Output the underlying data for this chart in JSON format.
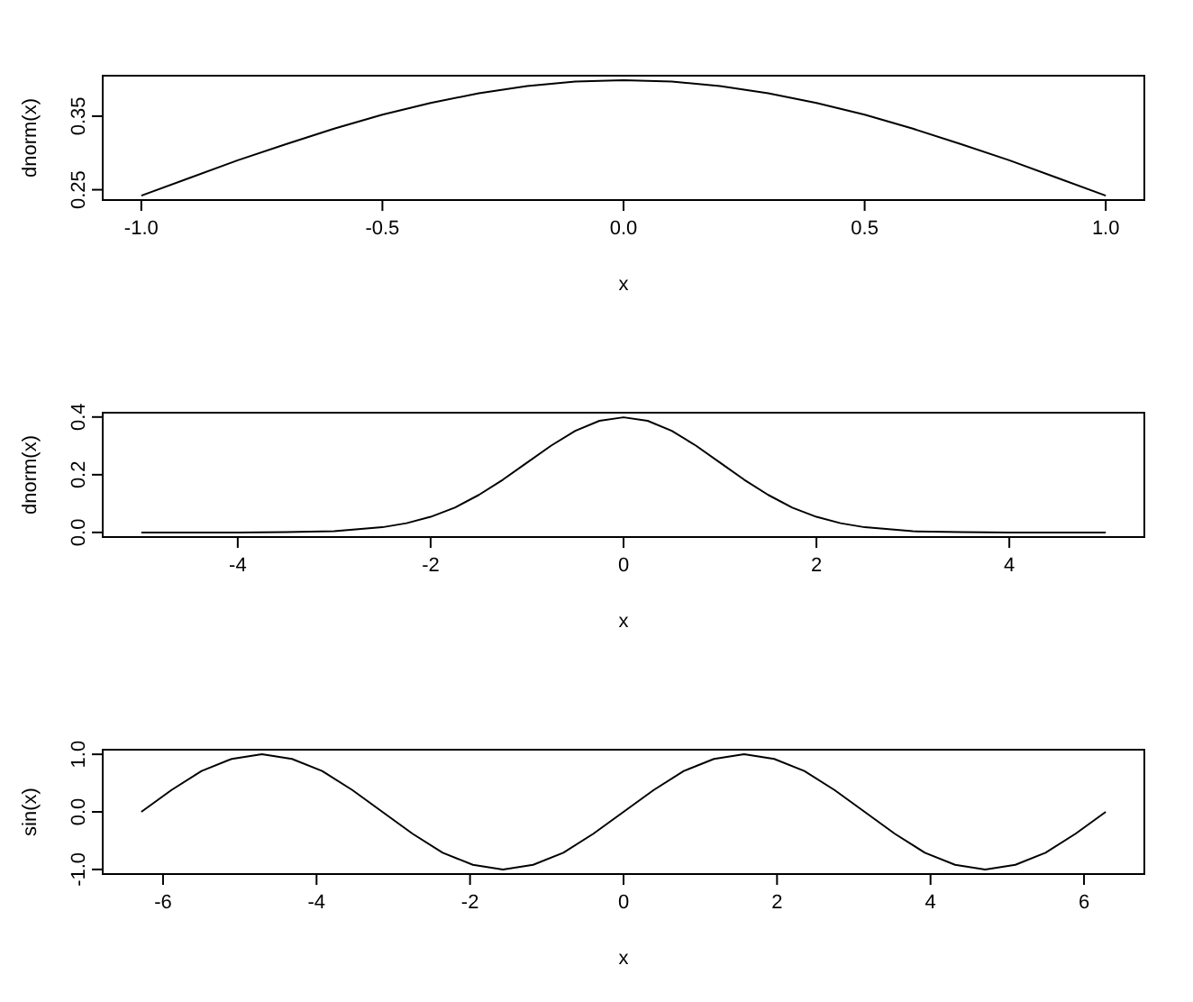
{
  "chart_data": [
    {
      "type": "line",
      "xlabel": "x",
      "ylabel": "dnorm(x)",
      "x": [
        -1,
        -0.9,
        -0.8,
        -0.7,
        -0.6,
        -0.5,
        -0.4,
        -0.3,
        -0.2,
        -0.1,
        0,
        0.1,
        0.2,
        0.3,
        0.4,
        0.5,
        0.6,
        0.7,
        0.8,
        0.9,
        1
      ],
      "series": [
        {
          "color": "#000000",
          "values": [
            0.242,
            0.266,
            0.29,
            0.312,
            0.333,
            0.352,
            0.368,
            0.381,
            0.391,
            0.397,
            0.399,
            0.397,
            0.391,
            0.381,
            0.368,
            0.352,
            0.333,
            0.312,
            0.29,
            0.266,
            0.242
          ]
        }
      ],
      "xlim": [
        -1.08,
        1.08
      ],
      "ylim": [
        0.236,
        0.405
      ],
      "xticks": [
        {
          "value": -1,
          "label": "-1.0"
        },
        -0.5,
        {
          "value": 0,
          "label": "0.0"
        },
        0.5,
        {
          "value": 1,
          "label": "1.0"
        }
      ],
      "yticks": [
        0.25,
        0.35
      ],
      "grid": false,
      "marker": "none",
      "line_style": "solid"
    },
    {
      "type": "line",
      "xlabel": "x",
      "ylabel": "dnorm(x)",
      "x": [
        -5,
        -4.5,
        -4,
        -3.5,
        -3,
        -2.5,
        -2.25,
        -2,
        -1.75,
        -1.5,
        -1.25,
        -1,
        -0.75,
        -0.5,
        -0.25,
        0,
        0.25,
        0.5,
        0.75,
        1,
        1.25,
        1.5,
        1.75,
        2,
        2.25,
        2.5,
        3,
        3.5,
        4,
        4.5,
        5
      ],
      "series": [
        {
          "color": "#000000",
          "values": [
            0,
            0,
            0,
            0.001,
            0.004,
            0.018,
            0.032,
            0.054,
            0.086,
            0.13,
            0.183,
            0.242,
            0.301,
            0.352,
            0.387,
            0.399,
            0.387,
            0.352,
            0.301,
            0.242,
            0.183,
            0.13,
            0.086,
            0.054,
            0.032,
            0.018,
            0.004,
            0.001,
            0,
            0,
            0
          ]
        }
      ],
      "xlim": [
        -5.4,
        5.4
      ],
      "ylim": [
        -0.016,
        0.415
      ],
      "xticks": [
        -4,
        -2,
        0,
        2,
        4
      ],
      "yticks": [
        {
          "value": 0,
          "label": "0.0"
        },
        0.2,
        0.4
      ],
      "grid": false,
      "marker": "none",
      "line_style": "solid"
    },
    {
      "type": "line",
      "xlabel": "x",
      "ylabel": "sin(x)",
      "x": [
        -6.283,
        -5.89,
        -5.498,
        -5.105,
        -4.712,
        -4.32,
        -3.927,
        -3.534,
        -3.142,
        -2.749,
        -2.356,
        -1.963,
        -1.571,
        -1.178,
        -0.785,
        -0.393,
        0,
        0.393,
        0.785,
        1.178,
        1.571,
        1.963,
        2.356,
        2.749,
        3.142,
        3.534,
        3.927,
        4.32,
        4.712,
        5.105,
        5.498,
        5.89,
        6.283
      ],
      "series": [
        {
          "color": "#000000",
          "values": [
            0,
            0.38,
            0.71,
            0.92,
            1,
            0.92,
            0.71,
            0.38,
            0,
            -0.38,
            -0.71,
            -0.92,
            -1,
            -0.92,
            -0.71,
            -0.38,
            0,
            0.38,
            0.71,
            0.92,
            1,
            0.92,
            0.71,
            0.38,
            0,
            -0.38,
            -0.71,
            -0.92,
            -1,
            -0.92,
            -0.71,
            -0.38,
            0
          ]
        }
      ],
      "xlim": [
        -6.786,
        6.786
      ],
      "ylim": [
        -1.08,
        1.08
      ],
      "xticks": [
        -6,
        -4,
        -2,
        0,
        2,
        4,
        6
      ],
      "yticks": [
        {
          "value": -1,
          "label": "-1.0"
        },
        {
          "value": 0,
          "label": "0.0"
        },
        {
          "value": 1,
          "label": "1.0"
        }
      ],
      "grid": false,
      "marker": "none",
      "line_style": "solid"
    }
  ]
}
